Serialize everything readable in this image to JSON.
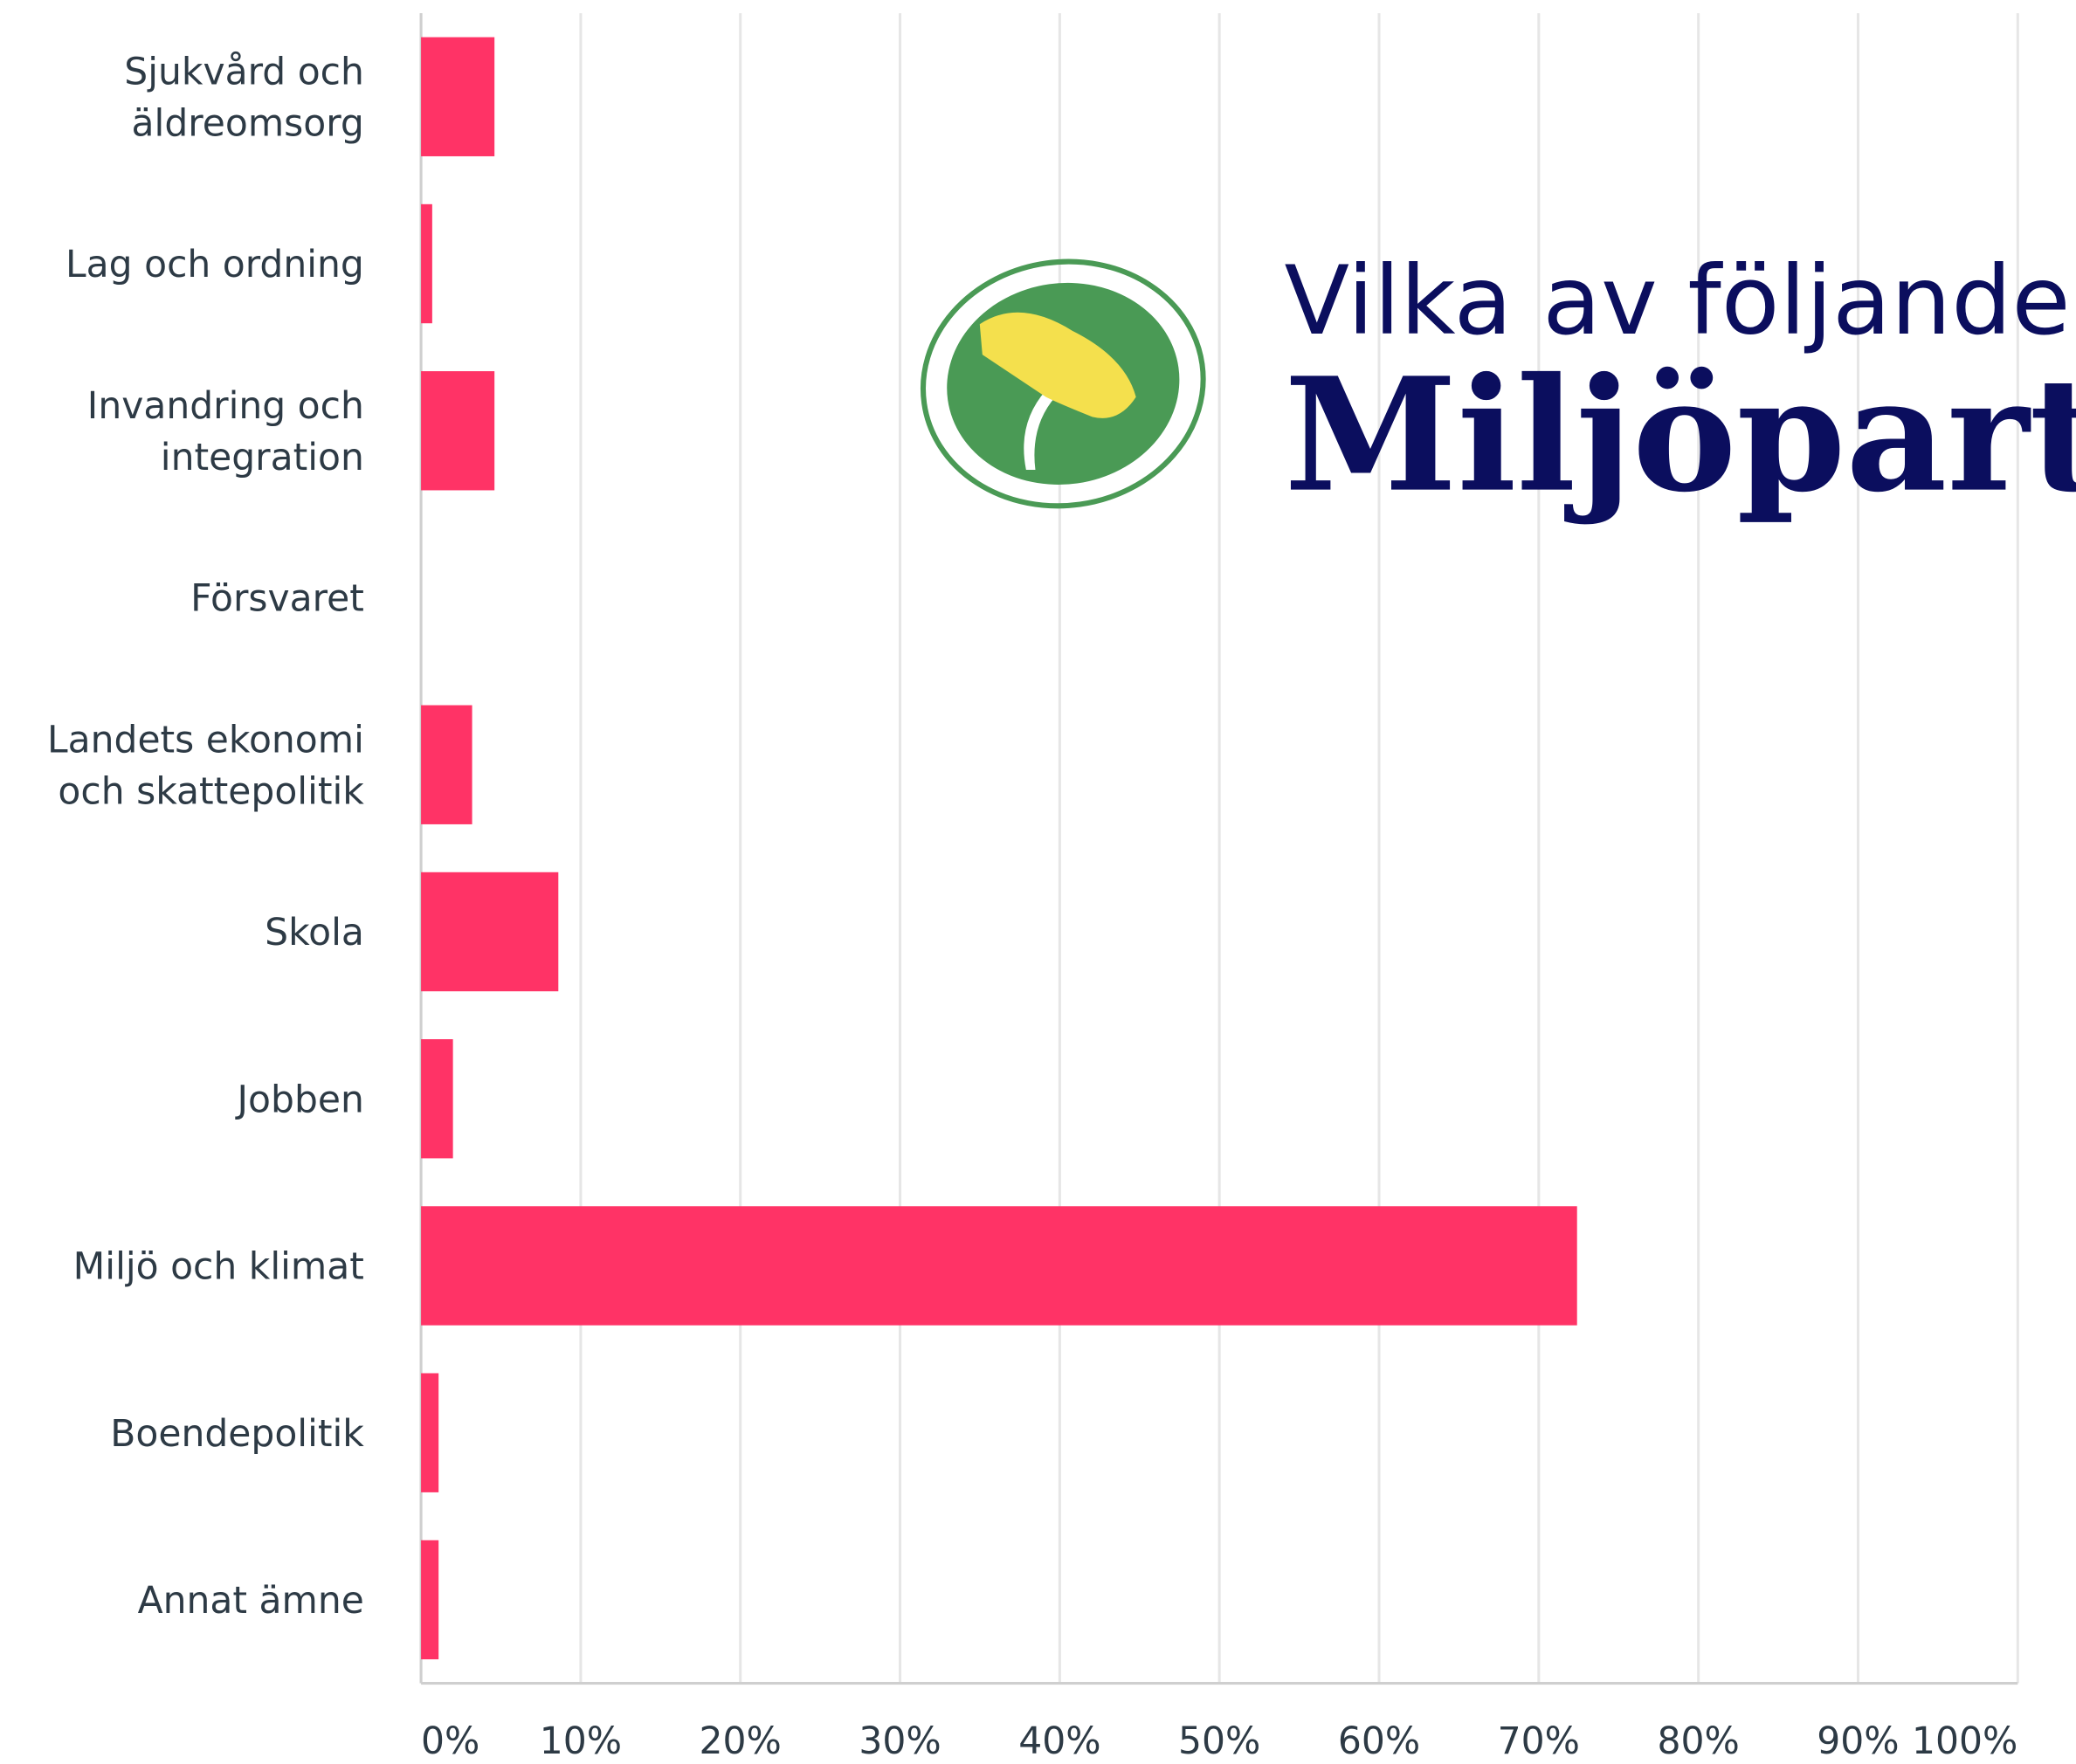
{
  "chart_data": {
    "type": "barh",
    "title": "Vilka av följande v",
    "subtitle": "Miljöpart",
    "categories": [
      "Sjukvård och\näldreomsorg",
      "Lag och ordning",
      "Invandring och\nintegration",
      "Försvaret",
      "Landets ekonomi\noch skattepolitik",
      "Skola",
      "Jobben",
      "Miljö och klimat",
      "Boendepolitik",
      "Annat ämne"
    ],
    "values": [
      4.6,
      0.7,
      4.6,
      0,
      3.2,
      8.6,
      2.0,
      72.4,
      1.1,
      1.1
    ],
    "color": "#ff3366",
    "xlim": [
      0,
      100
    ],
    "xticks": [
      {
        "value": 0,
        "label": "0%"
      },
      {
        "value": 10,
        "label": "10%"
      },
      {
        "value": 20,
        "label": "20%"
      },
      {
        "value": 30,
        "label": "30%"
      },
      {
        "value": 40,
        "label": "40%"
      },
      {
        "value": 50,
        "label": "50%"
      },
      {
        "value": 60,
        "label": "60%"
      },
      {
        "value": 70,
        "label": "70%"
      },
      {
        "value": 80,
        "label": "80%"
      },
      {
        "value": 90,
        "label": "90%"
      },
      {
        "value": 100,
        "label": "100%"
      }
    ],
    "grid": true
  }
}
